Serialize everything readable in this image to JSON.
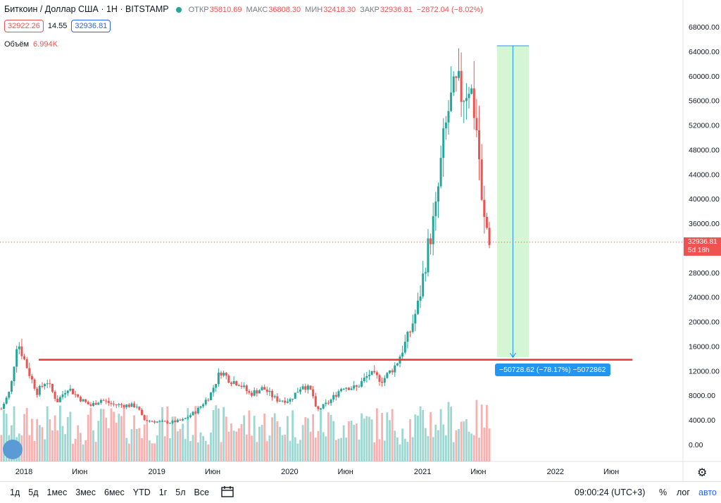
{
  "header": {
    "symbol": "Биткоин / Доллар США · 1Н · BITSTAMP",
    "open_key": "ОТКР",
    "open_val": "35810.69",
    "high_key": "МАКС",
    "high_val": "36808.30",
    "low_key": "МИН",
    "low_val": "32418.30",
    "close_key": "ЗАКР",
    "close_val": "32936.81",
    "change": "−2872.04 (−8.02%)",
    "bid": "32922.26",
    "spread": "14.55",
    "ask": "32936.81",
    "volume_label": "Объём",
    "volume_val": "6.994K"
  },
  "last_price": {
    "value": "32936.81",
    "countdown": "5d 18h"
  },
  "measure_label": "−50728.62 (−78.17%) −5072862",
  "bottom": {
    "ranges": [
      "1д",
      "5д",
      "1мес",
      "3мес",
      "6мес",
      "YTD",
      "1г",
      "5л",
      "Все"
    ],
    "time": "09:00:24 (UTC+3)",
    "pct": "%",
    "log": "лог",
    "auto": "авто"
  },
  "colors": {
    "up": "#26a69a",
    "down": "#ef5350",
    "support": "#e53935",
    "accent": "#2962ff",
    "measure_fill": "#ccf5cc"
  },
  "chart_data": {
    "type": "candlestick",
    "title": "Биткоин / Доллар США · 1Н · BITSTAMP",
    "ylim": [
      -2000,
      70000
    ],
    "y_ticks": [
      0,
      4000,
      8000,
      12000,
      16000,
      20000,
      24000,
      28000,
      32000,
      36000,
      40000,
      44000,
      48000,
      52000,
      56000,
      60000,
      64000,
      68000
    ],
    "y_tick_labels": [
      "0.00",
      "4000.00",
      "8000.00",
      "12000.00",
      "16000.00",
      "20000.00",
      "24000.00",
      "28000.00",
      "32000.00",
      "36000.00",
      "40000.00",
      "44000.00",
      "48000.00",
      "52000.00",
      "56000.00",
      "60000.00",
      "64000.00",
      "68000.00"
    ],
    "x_tick_labels": [
      "2018",
      "Июн",
      "2019",
      "Июн",
      "2020",
      "Июн",
      "2021",
      "Июн",
      "2022",
      "Июн"
    ],
    "x_tick_dates": [
      2018.0,
      2018.42,
      2019.0,
      2019.42,
      2020.0,
      2020.42,
      2021.0,
      2021.42,
      2022.0,
      2022.42
    ],
    "xlim": [
      2017.82,
      2022.96
    ],
    "weekly_close_anchors": [
      [
        2017.83,
        5800
      ],
      [
        2017.9,
        9000
      ],
      [
        2017.95,
        17000
      ],
      [
        2018.0,
        14000
      ],
      [
        2018.05,
        11000
      ],
      [
        2018.1,
        8500
      ],
      [
        2018.17,
        10500
      ],
      [
        2018.25,
        7000
      ],
      [
        2018.33,
        9300
      ],
      [
        2018.42,
        7500
      ],
      [
        2018.5,
        6300
      ],
      [
        2018.58,
        7300
      ],
      [
        2018.67,
        6500
      ],
      [
        2018.75,
        6400
      ],
      [
        2018.85,
        6300
      ],
      [
        2018.9,
        4000
      ],
      [
        2019.0,
        3700
      ],
      [
        2019.1,
        3600
      ],
      [
        2019.2,
        4000
      ],
      [
        2019.3,
        5500
      ],
      [
        2019.4,
        8000
      ],
      [
        2019.48,
        12000
      ],
      [
        2019.55,
        10500
      ],
      [
        2019.62,
        10000
      ],
      [
        2019.7,
        8200
      ],
      [
        2019.8,
        9200
      ],
      [
        2019.9,
        7300
      ],
      [
        2020.0,
        7200
      ],
      [
        2020.1,
        9800
      ],
      [
        2020.17,
        8500
      ],
      [
        2020.2,
        5400
      ],
      [
        2020.3,
        7000
      ],
      [
        2020.4,
        9500
      ],
      [
        2020.5,
        9200
      ],
      [
        2020.6,
        11500
      ],
      [
        2020.7,
        10500
      ],
      [
        2020.8,
        13000
      ],
      [
        2020.85,
        15500
      ],
      [
        2020.9,
        18000
      ],
      [
        2020.97,
        23000
      ],
      [
        2021.04,
        32000
      ],
      [
        2021.1,
        38000
      ],
      [
        2021.15,
        48000
      ],
      [
        2021.2,
        55000
      ],
      [
        2021.26,
        58000
      ],
      [
        2021.3,
        57000
      ],
      [
        2021.35,
        59000
      ],
      [
        2021.38,
        56000
      ],
      [
        2021.42,
        49000
      ],
      [
        2021.45,
        37000
      ],
      [
        2021.48,
        35500
      ],
      [
        2021.51,
        33000
      ]
    ],
    "support_line": {
      "value": 13800,
      "from": 2017.82,
      "to": 2022.58
    },
    "measure": {
      "from_date": 2021.56,
      "to_date": 2021.8,
      "from_value": 64900,
      "to_value": 14200
    },
    "last_price": 32936.81
  }
}
